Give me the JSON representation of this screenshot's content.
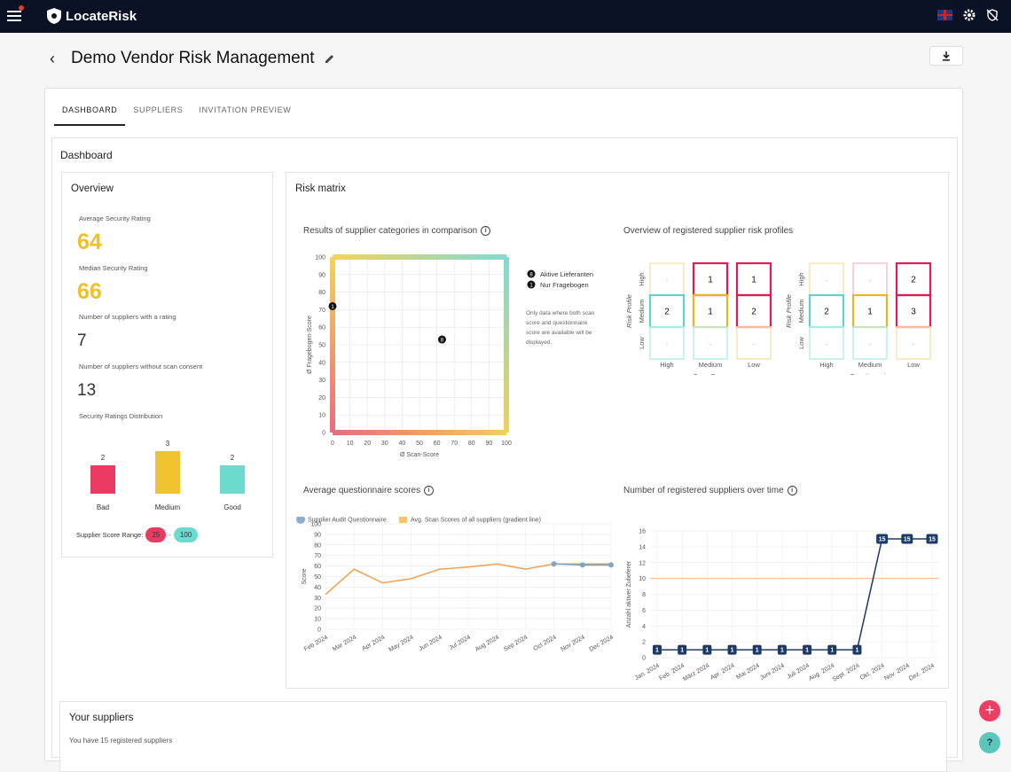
{
  "app": {
    "logo_text": "LocateRisk"
  },
  "header": {
    "title": "Demo Vendor Risk Management"
  },
  "tabs": [
    {
      "label": "DASHBOARD",
      "active": true
    },
    {
      "label": "SUPPLIERS"
    },
    {
      "label": "INVITATION PREVIEW"
    }
  ],
  "dashboard": {
    "title": "Dashboard"
  },
  "overview": {
    "title": "Overview",
    "avg_label": "Average Security Rating",
    "avg_value": "64",
    "median_label": "Median Security Rating",
    "median_value": "66",
    "rated_label": "Number of suppliers with a rating",
    "rated_value": "7",
    "noscan_label": "Number of suppliers without scan consent",
    "noscan_value": "13",
    "dist_label": "Security Ratings Distribution",
    "distribution": [
      {
        "label": "Bad",
        "value": 2,
        "color": "#ea3a62"
      },
      {
        "label": "Medium",
        "value": 3,
        "color": "#f0c431"
      },
      {
        "label": "Good",
        "value": 2,
        "color": "#6ddad0"
      }
    ],
    "range_label": "Supplier Score Range:",
    "range_min": "25",
    "range_sep": "-",
    "range_max": "100"
  },
  "risk_matrix": {
    "title": "Risk matrix",
    "comparison": {
      "title": "Results of supplier categories in comparison",
      "xlabel": "Ø Scan-Score",
      "ylabel": "Ø Fragebogen-Score",
      "ticks": [
        "0",
        "10",
        "20",
        "30",
        "40",
        "50",
        "60",
        "70",
        "80",
        "90",
        "100"
      ],
      "legend": [
        {
          "badge": "8",
          "label": "Aktive Lieferanten"
        },
        {
          "badge": "1",
          "label": "Nur Fragebogen"
        }
      ],
      "note_lines": [
        "Only data where both scan",
        "score and questionnaire",
        "score are available will be",
        "displayed."
      ]
    },
    "profiles": {
      "title": "Overview of registered supplier risk profiles",
      "row_labels": [
        "High",
        "Medium",
        "Low"
      ],
      "col_labels": [
        "High",
        "Medium",
        "Low"
      ],
      "y_title": "Risk Profile",
      "scan_title": "Scan-Score",
      "quest_title": "Questionnaire",
      "scan_cells": [
        "-",
        "1",
        "1",
        "2",
        "1",
        "2",
        "-",
        "-",
        "-"
      ],
      "quest_cells": [
        "-",
        "-",
        "2",
        "2",
        "1",
        "3",
        "-",
        "-",
        "-"
      ]
    }
  },
  "avg_questionnaire": {
    "title": "Average questionnaire scores",
    "legend": [
      "Supplier Audit Questionnaire",
      "Avg. Scan Scores of all suppliers (gradient line)"
    ],
    "ylabel": "Score",
    "y_ticks": [
      "0",
      "10",
      "20",
      "30",
      "40",
      "50",
      "60",
      "70",
      "80",
      "90",
      "100"
    ],
    "x_ticks": [
      "Feb 2024",
      "Mar 2024",
      "Apr 2024",
      "May 2024",
      "Jun 2024",
      "Jul 2024",
      "Aug 2024",
      "Sep 2024",
      "Oct 2024",
      "Nov 2024",
      "Dec 2024"
    ]
  },
  "suppliers_over_time": {
    "title": "Number of registered suppliers over time",
    "ylabel": "Anzahl aktiver Zulieferer",
    "y_ticks": [
      "0",
      "2",
      "4",
      "6",
      "8",
      "10",
      "12",
      "14",
      "16"
    ],
    "x_ticks": [
      "Jan. 2024",
      "Feb. 2024",
      "März 2024",
      "Apr. 2024",
      "Mai 2024",
      "Juni 2024",
      "Juli 2024",
      "Aug. 2024",
      "Sept. 2024",
      "Okt. 2024",
      "Nov. 2024",
      "Dez. 2024"
    ]
  },
  "your_suppliers": {
    "title": "Your suppliers",
    "subtitle": "You have 15 registered suppliers"
  },
  "chart_data": [
    {
      "type": "bar",
      "title": "Security Ratings Distribution",
      "categories": [
        "Bad",
        "Medium",
        "Good"
      ],
      "values": [
        2,
        3,
        2
      ]
    },
    {
      "type": "scatter",
      "title": "Results of supplier categories in comparison",
      "xlabel": "Ø Scan-Score",
      "ylabel": "Ø Fragebogen-Score",
      "xlim": [
        0,
        100
      ],
      "ylim": [
        0,
        100
      ],
      "series": [
        {
          "name": "Aktive Lieferanten",
          "points": [
            {
              "x": 63,
              "y": 53,
              "count": 8
            }
          ]
        },
        {
          "name": "Nur Fragebogen",
          "points": [
            {
              "x": 0,
              "y": 72,
              "count": 1
            }
          ]
        }
      ]
    },
    {
      "type": "line",
      "title": "Average questionnaire scores",
      "ylabel": "Score",
      "ylim": [
        0,
        100
      ],
      "categories": [
        "Feb 2024",
        "Mar 2024",
        "Apr 2024",
        "May 2024",
        "Jun 2024",
        "Jul 2024",
        "Aug 2024",
        "Sep 2024",
        "Oct 2024",
        "Nov 2024",
        "Dec 2024"
      ],
      "series": [
        {
          "name": "Avg. Scan Scores of all suppliers (gradient line)",
          "values": [
            33,
            57,
            44,
            48,
            57,
            59,
            62,
            57,
            62,
            62,
            62
          ]
        },
        {
          "name": "Supplier Audit Questionnaire",
          "values": [
            null,
            null,
            null,
            null,
            null,
            null,
            null,
            null,
            62,
            61,
            61
          ]
        }
      ]
    },
    {
      "type": "line",
      "title": "Number of registered suppliers over time",
      "ylabel": "Anzahl aktiver Zulieferer",
      "ylim": [
        0,
        16
      ],
      "categories": [
        "Jan. 2024",
        "Feb. 2024",
        "März 2024",
        "Apr. 2024",
        "Mai 2024",
        "Juni 2024",
        "Juli 2024",
        "Aug. 2024",
        "Sept. 2024",
        "Okt. 2024",
        "Nov. 2024",
        "Dez. 2024"
      ],
      "values": [
        1,
        1,
        1,
        1,
        1,
        1,
        1,
        1,
        1,
        15,
        15,
        15
      ],
      "reference_line": 10
    }
  ]
}
